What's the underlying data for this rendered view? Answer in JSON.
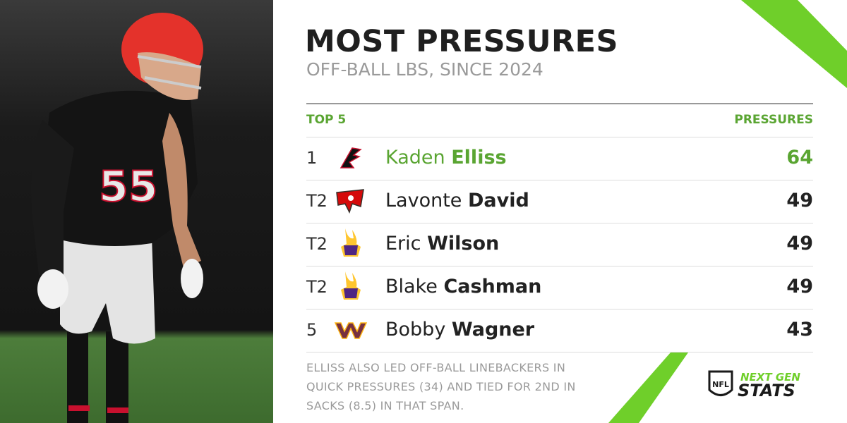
{
  "header": {
    "title": "MOST PRESSURES",
    "subtitle": "OFF-BALL LBS, SINCE 2024"
  },
  "table": {
    "columns": [
      "TOP 5",
      "PRESSURES"
    ],
    "rows": [
      {
        "rank": "1",
        "first": "Kaden",
        "last": "Elliss",
        "value": 64
      },
      {
        "rank": "T2",
        "first": "Lavonte",
        "last": "David",
        "value": 49
      },
      {
        "rank": "T2",
        "first": "Eric",
        "last": "Wilson",
        "value": 49
      },
      {
        "rank": "T2",
        "first": "Blake",
        "last": "Cashman",
        "value": 49
      },
      {
        "rank": "5",
        "first": "Bobby",
        "last": "Wagner",
        "value": 43
      }
    ]
  },
  "footnote": {
    "lines": [
      "ELLISS ALSO LED OFF-BALL LINEBACKERS IN",
      "QUICK PRESSURES (34) AND TIED FOR 2ND IN",
      "SACKS (8.5) IN THAT SPAN."
    ]
  },
  "logo": {
    "shield": "NFL",
    "line1": "NEXT GEN",
    "line2": "STATS"
  }
}
